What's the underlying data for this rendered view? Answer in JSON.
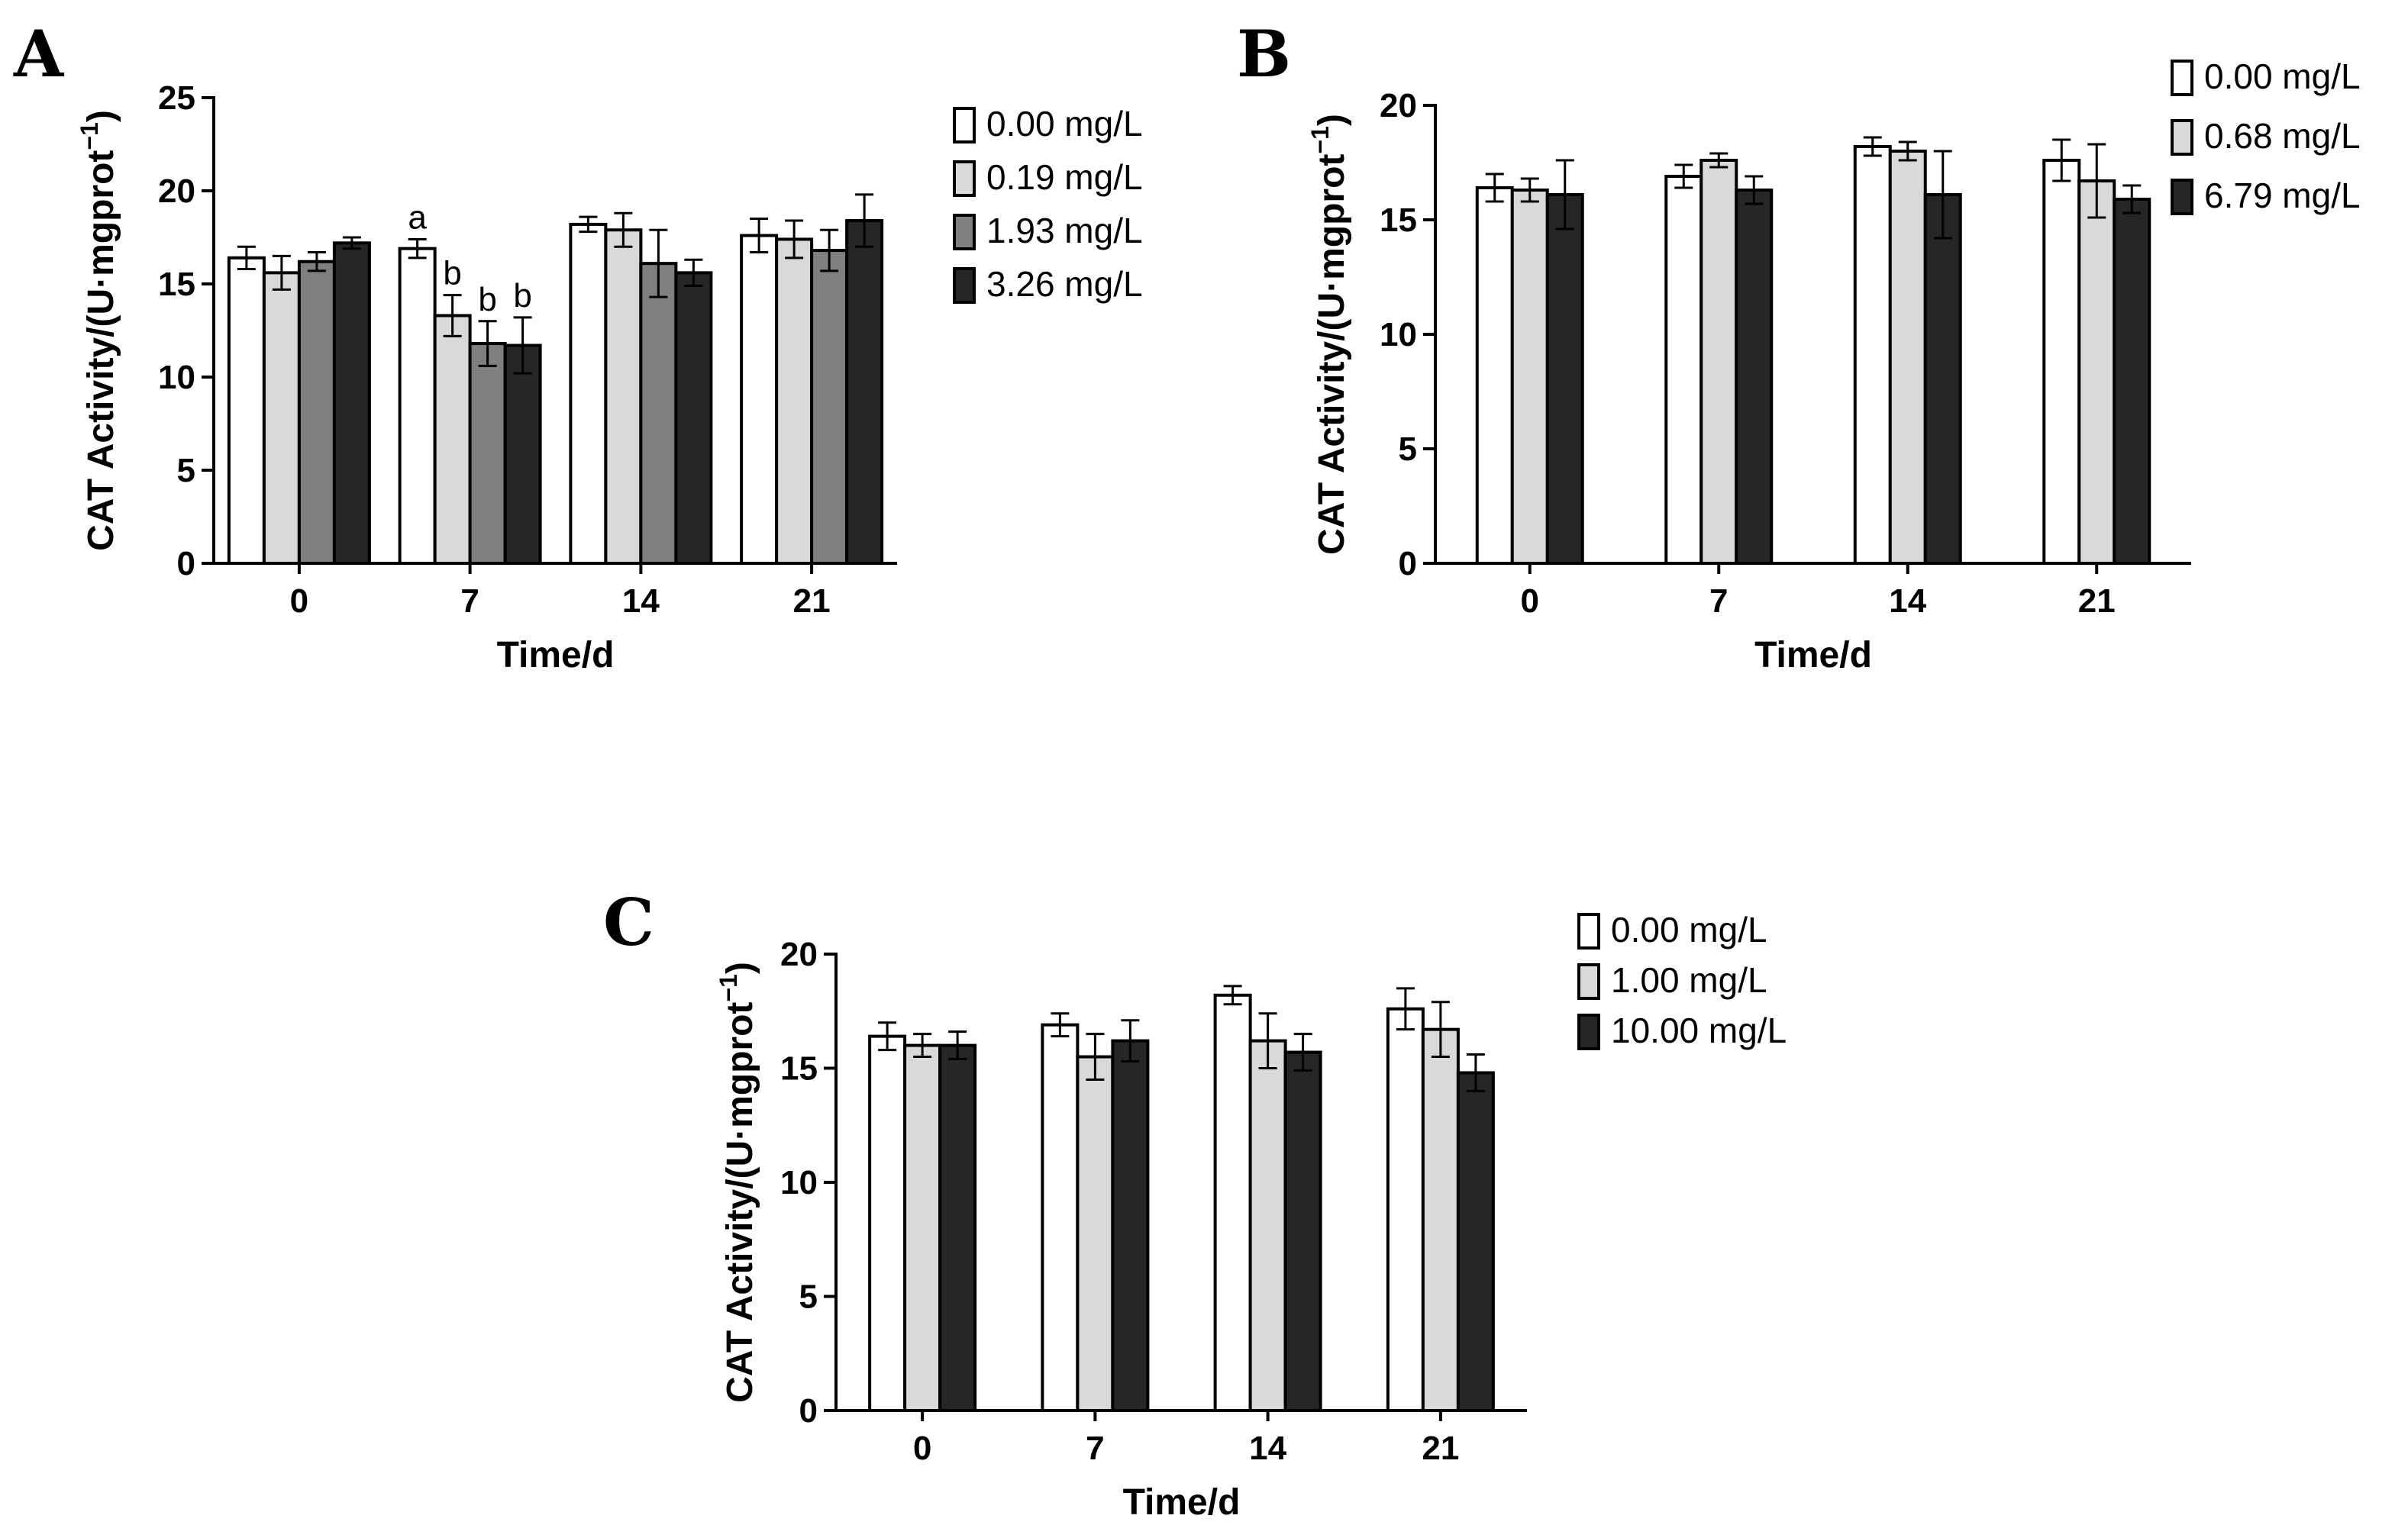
{
  "colors": {
    "s0": "#ffffff",
    "s1": "#d9d9d9",
    "s2": "#7f7f7f",
    "s3": "#262626"
  },
  "chart_data": [
    {
      "panel": "A",
      "type": "bar",
      "xlabel": "Time/d",
      "ylabel_main": "CAT Activity/(U·mgprot",
      "ylabel_sup": "−1",
      "ylabel_close": ")",
      "ylim": [
        0,
        25
      ],
      "yticks": [
        "0",
        "5",
        "10",
        "15",
        "20",
        "25"
      ],
      "categories": [
        "0",
        "7",
        "14",
        "21"
      ],
      "legend_position": "top-right",
      "series": [
        {
          "name": "0.00 mg/L",
          "color": "s0",
          "values": [
            16.4,
            16.9,
            18.2,
            17.6
          ],
          "errors": [
            0.6,
            0.5,
            0.4,
            0.9
          ]
        },
        {
          "name": "0.19 mg/L",
          "color": "s1",
          "values": [
            15.6,
            13.3,
            17.9,
            17.4
          ],
          "errors": [
            0.9,
            1.1,
            0.9,
            1.0
          ]
        },
        {
          "name": "1.93 mg/L",
          "color": "s2",
          "values": [
            16.2,
            11.8,
            16.1,
            16.8
          ],
          "errors": [
            0.5,
            1.2,
            1.8,
            1.1
          ]
        },
        {
          "name": "3.26 mg/L",
          "color": "s3",
          "values": [
            17.2,
            11.7,
            15.6,
            18.4
          ],
          "errors": [
            0.3,
            1.5,
            0.7,
            1.4
          ]
        }
      ],
      "annotations": [
        {
          "text": "a",
          "category": 1,
          "series": 0
        },
        {
          "text": "b",
          "category": 1,
          "series": 1
        },
        {
          "text": "b",
          "category": 1,
          "series": 2
        },
        {
          "text": "b",
          "category": 1,
          "series": 3
        }
      ]
    },
    {
      "panel": "B",
      "type": "bar",
      "xlabel": "Time/d",
      "ylabel_main": "CAT Activity/(U·mgprot",
      "ylabel_sup": "−1",
      "ylabel_close": ")",
      "ylim": [
        0,
        20
      ],
      "yticks": [
        "0",
        "5",
        "10",
        "15",
        "20"
      ],
      "categories": [
        "0",
        "7",
        "14",
        "21"
      ],
      "legend_position": "top-right",
      "series": [
        {
          "name": "0.00 mg/L",
          "color": "s0",
          "values": [
            16.4,
            16.9,
            18.2,
            17.6
          ],
          "errors": [
            0.6,
            0.5,
            0.4,
            0.9
          ]
        },
        {
          "name": "0.68 mg/L",
          "color": "s1",
          "values": [
            16.3,
            17.6,
            18.0,
            16.7
          ],
          "errors": [
            0.5,
            0.3,
            0.4,
            1.6
          ]
        },
        {
          "name": "6.79 mg/L",
          "color": "s3",
          "values": [
            16.1,
            16.3,
            16.1,
            15.9
          ],
          "errors": [
            1.5,
            0.6,
            1.9,
            0.6
          ]
        }
      ],
      "annotations": []
    },
    {
      "panel": "C",
      "type": "bar",
      "xlabel": "Time/d",
      "ylabel_main": "CAT Activity/(U·mgprot",
      "ylabel_sup": "−1",
      "ylabel_close": ")",
      "ylim": [
        0,
        20
      ],
      "yticks": [
        "0",
        "5",
        "10",
        "15",
        "20"
      ],
      "categories": [
        "0",
        "7",
        "14",
        "21"
      ],
      "legend_position": "top-right",
      "series": [
        {
          "name": "0.00 mg/L",
          "color": "s0",
          "values": [
            16.4,
            16.9,
            18.2,
            17.6
          ],
          "errors": [
            0.6,
            0.5,
            0.4,
            0.9
          ]
        },
        {
          "name": "1.00 mg/L",
          "color": "s1",
          "values": [
            16.0,
            15.5,
            16.2,
            16.7
          ],
          "errors": [
            0.5,
            1.0,
            1.2,
            1.2
          ]
        },
        {
          "name": "10.00 mg/L",
          "color": "s3",
          "values": [
            16.0,
            16.2,
            15.7,
            14.8
          ],
          "errors": [
            0.6,
            0.9,
            0.8,
            0.8
          ]
        }
      ],
      "annotations": []
    }
  ]
}
